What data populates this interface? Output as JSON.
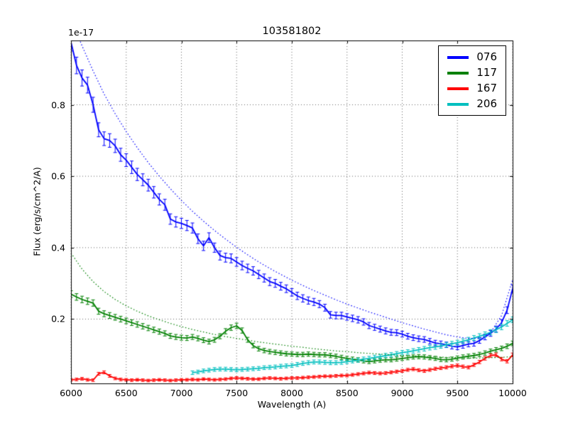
{
  "chart_data": {
    "type": "line",
    "title": "103581802",
    "xlabel": "Wavelength (A)",
    "ylabel": "Flux (erg/s/cm^2/A)",
    "y_scale_factor": "1e-17",
    "xlim": [
      6000,
      10000
    ],
    "ylim": [
      0.02,
      0.98
    ],
    "xticks": [
      6000,
      6500,
      7000,
      7500,
      8000,
      8500,
      9000,
      9500,
      10000
    ],
    "yticks": [
      0.2,
      0.4,
      0.6,
      0.8
    ],
    "grid": true,
    "legend_position": "upper right",
    "series": [
      {
        "name": "076",
        "color": "#0000ff",
        "err_base": 0.005,
        "err_prop": 0.02,
        "x_start": 6000,
        "x_step": 50,
        "y": [
          0.975,
          0.91,
          0.875,
          0.855,
          0.8,
          0.73,
          0.705,
          0.7,
          0.685,
          0.66,
          0.645,
          0.625,
          0.605,
          0.59,
          0.575,
          0.555,
          0.535,
          0.52,
          0.48,
          0.472,
          0.468,
          0.462,
          0.455,
          0.425,
          0.405,
          0.428,
          0.4,
          0.378,
          0.372,
          0.37,
          0.36,
          0.35,
          0.342,
          0.335,
          0.325,
          0.315,
          0.305,
          0.3,
          0.292,
          0.285,
          0.275,
          0.265,
          0.258,
          0.252,
          0.248,
          0.242,
          0.232,
          0.212,
          0.21,
          0.21,
          0.206,
          0.202,
          0.198,
          0.192,
          0.182,
          0.177,
          0.172,
          0.167,
          0.163,
          0.162,
          0.158,
          0.152,
          0.148,
          0.145,
          0.143,
          0.138,
          0.133,
          0.131,
          0.128,
          0.124,
          0.122,
          0.126,
          0.13,
          0.132,
          0.14,
          0.15,
          0.16,
          0.172,
          0.19,
          0.225,
          0.285
        ]
      },
      {
        "name": "117",
        "color": "#008000",
        "err_base": 0.004,
        "err_prop": 0.02,
        "x_start": 6000,
        "x_step": 50,
        "y": [
          0.27,
          0.262,
          0.255,
          0.25,
          0.245,
          0.222,
          0.215,
          0.21,
          0.205,
          0.2,
          0.195,
          0.19,
          0.185,
          0.18,
          0.175,
          0.17,
          0.165,
          0.16,
          0.153,
          0.15,
          0.148,
          0.147,
          0.15,
          0.146,
          0.141,
          0.137,
          0.142,
          0.152,
          0.166,
          0.176,
          0.181,
          0.168,
          0.142,
          0.126,
          0.117,
          0.112,
          0.109,
          0.107,
          0.105,
          0.103,
          0.102,
          0.101,
          0.101,
          0.102,
          0.101,
          0.1,
          0.1,
          0.098,
          0.096,
          0.093,
          0.09,
          0.088,
          0.086,
          0.083,
          0.081,
          0.083,
          0.085,
          0.086,
          0.086,
          0.088,
          0.09,
          0.092,
          0.094,
          0.095,
          0.094,
          0.092,
          0.09,
          0.087,
          0.086,
          0.088,
          0.091,
          0.094,
          0.096,
          0.098,
          0.101,
          0.105,
          0.11,
          0.114,
          0.118,
          0.124,
          0.132
        ]
      },
      {
        "name": "167",
        "color": "#ff0000",
        "err_base": 0.003,
        "err_prop": 0.02,
        "x_start": 6000,
        "x_step": 50,
        "y": [
          0.03,
          0.031,
          0.033,
          0.03,
          0.029,
          0.047,
          0.051,
          0.041,
          0.034,
          0.031,
          0.03,
          0.029,
          0.03,
          0.029,
          0.028,
          0.029,
          0.03,
          0.029,
          0.028,
          0.029,
          0.03,
          0.03,
          0.031,
          0.03,
          0.032,
          0.031,
          0.03,
          0.031,
          0.032,
          0.034,
          0.035,
          0.034,
          0.033,
          0.032,
          0.032,
          0.034,
          0.035,
          0.034,
          0.033,
          0.034,
          0.035,
          0.035,
          0.036,
          0.037,
          0.038,
          0.039,
          0.04,
          0.04,
          0.041,
          0.042,
          0.042,
          0.044,
          0.046,
          0.048,
          0.05,
          0.049,
          0.048,
          0.049,
          0.051,
          0.053,
          0.055,
          0.058,
          0.06,
          0.057,
          0.055,
          0.058,
          0.061,
          0.063,
          0.065,
          0.068,
          0.07,
          0.067,
          0.065,
          0.072,
          0.08,
          0.09,
          0.098,
          0.1,
          0.088,
          0.082,
          0.1
        ]
      },
      {
        "name": "206",
        "color": "#00bfbf",
        "err_base": 0.004,
        "err_prop": 0.02,
        "x_start": 7100,
        "x_step": 50,
        "y": [
          0.05,
          0.052,
          0.055,
          0.057,
          0.059,
          0.06,
          0.06,
          0.059,
          0.058,
          0.059,
          0.06,
          0.061,
          0.062,
          0.064,
          0.065,
          0.066,
          0.068,
          0.069,
          0.07,
          0.073,
          0.076,
          0.078,
          0.08,
          0.08,
          0.079,
          0.078,
          0.078,
          0.079,
          0.081,
          0.083,
          0.085,
          0.088,
          0.09,
          0.093,
          0.095,
          0.098,
          0.1,
          0.103,
          0.106,
          0.108,
          0.111,
          0.114,
          0.117,
          0.12,
          0.122,
          0.125,
          0.128,
          0.131,
          0.134,
          0.138,
          0.142,
          0.147,
          0.152,
          0.157,
          0.163,
          0.17,
          0.178,
          0.188,
          0.198
        ]
      }
    ],
    "models": [
      {
        "series": "076",
        "color": "#0000ff",
        "style": "dotted",
        "x_start": 6000,
        "x_step": 100,
        "y": [
          1.04,
          0.965,
          0.895,
          0.83,
          0.775,
          0.725,
          0.68,
          0.638,
          0.6,
          0.565,
          0.532,
          0.502,
          0.474,
          0.448,
          0.424,
          0.401,
          0.38,
          0.36,
          0.342,
          0.325,
          0.309,
          0.294,
          0.28,
          0.267,
          0.254,
          0.242,
          0.231,
          0.22,
          0.21,
          0.2,
          0.19,
          0.181,
          0.172,
          0.164,
          0.156,
          0.15,
          0.146,
          0.146,
          0.162,
          0.21,
          0.31
        ]
      },
      {
        "series": "117",
        "color": "#008000",
        "style": "dotted",
        "x_start": 6000,
        "x_step": 100,
        "y": [
          0.385,
          0.34,
          0.305,
          0.277,
          0.255,
          0.237,
          0.222,
          0.209,
          0.198,
          0.188,
          0.179,
          0.171,
          0.164,
          0.157,
          0.151,
          0.146,
          0.141,
          0.136,
          0.132,
          0.128,
          0.124,
          0.121,
          0.117,
          0.114,
          0.111,
          0.109,
          0.106,
          0.104,
          0.102,
          0.1,
          0.098,
          0.097,
          0.095,
          0.094,
          0.093,
          0.092,
          0.091,
          0.091,
          0.092,
          0.093,
          0.095
        ]
      }
    ]
  }
}
